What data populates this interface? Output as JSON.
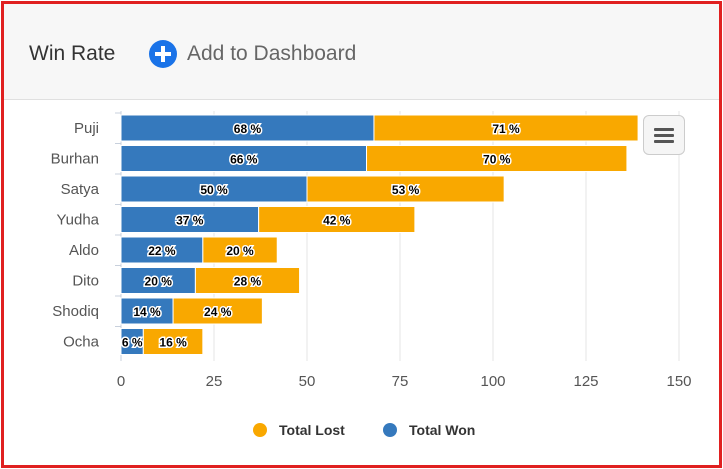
{
  "header": {
    "title": "Win Rate",
    "add_label": "Add to Dashboard"
  },
  "chart_data": {
    "type": "bar",
    "orientation": "horizontal",
    "stacked": true,
    "categories": [
      "Puji",
      "Burhan",
      "Satya",
      "Yudha",
      "Aldo",
      "Dito",
      "Shodiq",
      "Ocha"
    ],
    "series": [
      {
        "name": "Total Won",
        "values": [
          68,
          66,
          50,
          37,
          22,
          20,
          14,
          6
        ],
        "color": "#3579bd"
      },
      {
        "name": "Total Lost",
        "values": [
          71,
          70,
          53,
          42,
          20,
          28,
          24,
          16
        ],
        "color": "#f9a800"
      }
    ],
    "xticks": [
      "0",
      "25",
      "50",
      "75",
      "100",
      "125",
      "150"
    ],
    "xlim": [
      0,
      150
    ],
    "label_suffix": " %",
    "legend": [
      "Total Lost",
      "Total Won"
    ],
    "legend_position": "bottom"
  },
  "colors": {
    "won": "#3579bd",
    "lost": "#f9a800",
    "accent": "#1a73e8"
  }
}
